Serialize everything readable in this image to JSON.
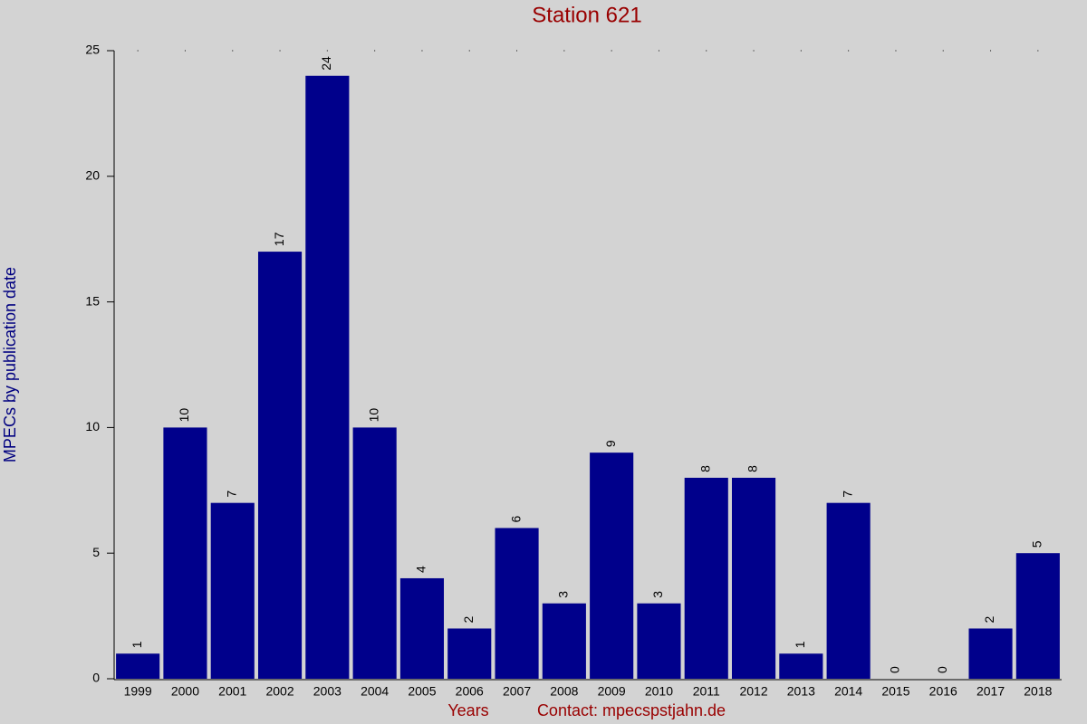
{
  "chart_data": {
    "type": "bar",
    "title": "Station 621",
    "x_label": "Years",
    "contact": "Contact: mpecspstjahn.de",
    "y_label": "MPECs by publication date",
    "categories": [
      "1999",
      "2000",
      "2001",
      "2002",
      "2003",
      "2004",
      "2005",
      "2006",
      "2007",
      "2008",
      "2009",
      "2010",
      "2011",
      "2012",
      "2013",
      "2014",
      "2015",
      "2016",
      "2017",
      "2018"
    ],
    "values": [
      1,
      10,
      7,
      17,
      24,
      10,
      4,
      2,
      6,
      3,
      9,
      3,
      8,
      8,
      1,
      7,
      0,
      0,
      2,
      5
    ],
    "color": "#00008b",
    "ylim": [
      0,
      25
    ],
    "yticks": [
      0,
      5,
      10,
      15,
      20,
      25
    ],
    "grid": false
  }
}
